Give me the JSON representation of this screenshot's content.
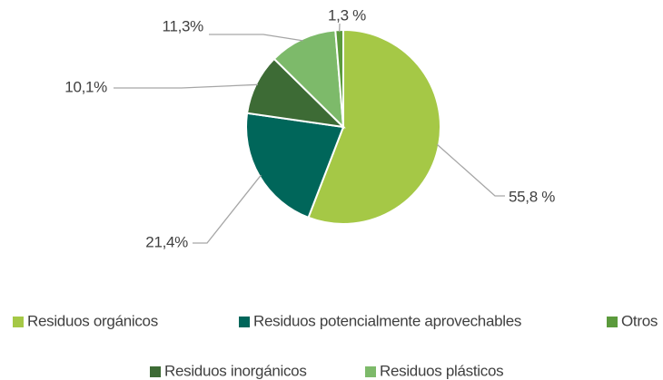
{
  "chart_data": {
    "type": "pie",
    "categories": [
      "Residuos orgánicos",
      "Residuos potencialmente aprovechables",
      "Residuos inorgánicos",
      "Residuos plásticos",
      "Otros"
    ],
    "values": [
      55.8,
      21.4,
      10.1,
      11.3,
      1.3
    ],
    "value_labels": [
      "55,8 %",
      "21,4%",
      "10,1%",
      "11,3%",
      "1,3 %"
    ],
    "colors": [
      "#a5c846",
      "#00665a",
      "#3d6b35",
      "#7dba6a",
      "#5b9a3c"
    ],
    "legend": "bottom"
  }
}
